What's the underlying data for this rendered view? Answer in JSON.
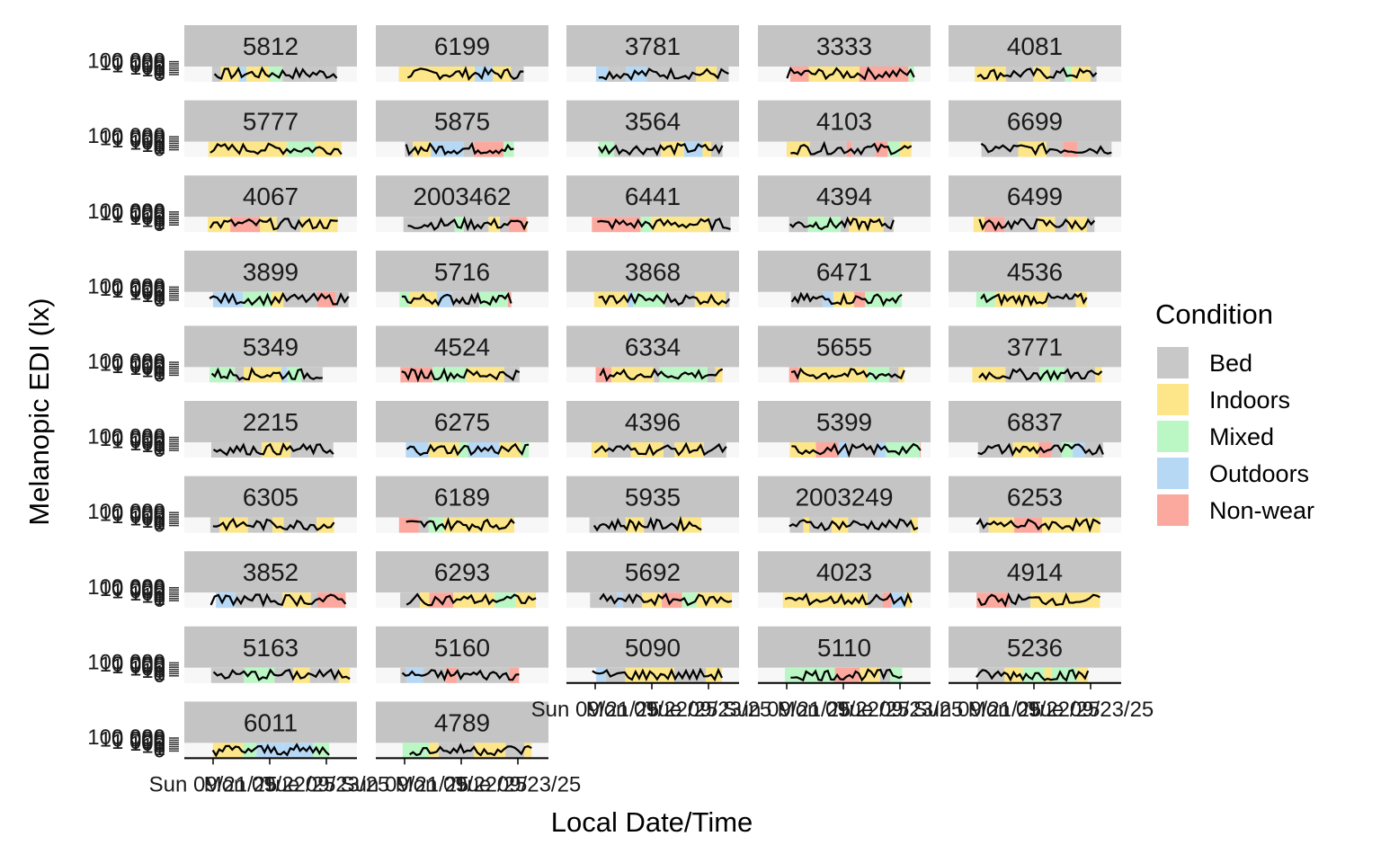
{
  "chart_data": {
    "type": "area",
    "facet_layout": {
      "columns": 5
    },
    "panels": [
      "5812",
      "6199",
      "3781",
      "3333",
      "4081",
      "5777",
      "5875",
      "3564",
      "4103",
      "6699",
      "4067",
      "2003462",
      "6441",
      "4394",
      "6499",
      "3899",
      "5716",
      "3868",
      "6471",
      "4536",
      "5349",
      "4524",
      "6334",
      "5655",
      "3771",
      "2215",
      "6275",
      "4396",
      "5399",
      "6837",
      "6305",
      "6189",
      "5935",
      "2003249",
      "6253",
      "3852",
      "6293",
      "5692",
      "4023",
      "4914",
      "5163",
      "5160",
      "5090",
      "5110",
      "5236",
      "6011",
      "4789"
    ],
    "xlabel": "Local Date/Time",
    "ylabel": "Melanopic EDI (lx)",
    "y_tick_labels": [
      "0",
      "1",
      "10",
      "100",
      "1 000",
      "10 000",
      "100 000"
    ],
    "x_tick_labels": [
      "Sun 09/21/25",
      "Mon 09/22/25",
      "Tue 09/23/25"
    ],
    "y_scale": "log",
    "grid": true,
    "legend": {
      "title": "Condition",
      "position": "right",
      "items": [
        {
          "label": "Bed",
          "color": "#c8c8c8"
        },
        {
          "label": "Indoors",
          "color": "#fde68a"
        },
        {
          "label": "Mixed",
          "color": "#bbf7c5"
        },
        {
          "label": "Outdoors",
          "color": "#b7d8f5"
        },
        {
          "label": "Non-wear",
          "color": "#fba89f"
        }
      ]
    }
  }
}
